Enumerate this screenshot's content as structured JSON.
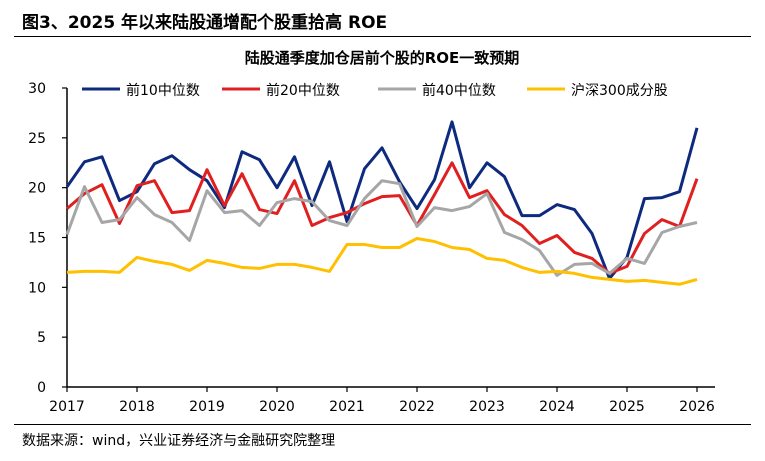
{
  "figure_title": "图3、2025 年以来陆股通增配个股重拾高 ROE",
  "source": "数据来源：wind，兴业证券经济与金融研究院整理",
  "chart_data": {
    "type": "line",
    "title": "陆股通季度加仓居前个股的ROE一致预期",
    "xlabel": "",
    "ylabel": "",
    "x_ticks": [
      "2017",
      "2018",
      "2019",
      "2020",
      "2021",
      "2022",
      "2023",
      "2024",
      "2025",
      "2026"
    ],
    "x_range": [
      2017,
      2026
    ],
    "x_step": 0.25,
    "ylim": [
      0,
      30
    ],
    "y_ticks": [
      0,
      5,
      10,
      15,
      20,
      25,
      30
    ],
    "grid": false,
    "legend_position": "top",
    "series": [
      {
        "name": "前10中位数",
        "color": "#0D2A7E",
        "values": [
          20.1,
          22.6,
          23.1,
          18.7,
          19.6,
          22.4,
          23.2,
          21.8,
          20.7,
          18.0,
          23.6,
          22.8,
          20.0,
          23.1,
          18.2,
          22.6,
          16.6,
          21.9,
          24.0,
          20.6,
          17.9,
          20.8,
          26.6,
          20.0,
          22.5,
          21.1,
          17.2,
          17.2,
          18.3,
          17.8,
          15.4,
          10.9,
          13.0,
          18.9,
          19.0,
          19.6,
          26.0
        ]
      },
      {
        "name": "前20中位数",
        "color": "#E02020",
        "values": [
          17.9,
          19.4,
          20.3,
          16.4,
          20.2,
          20.7,
          17.5,
          17.7,
          21.8,
          18.2,
          21.4,
          17.8,
          17.4,
          20.7,
          16.2,
          17.0,
          17.5,
          18.4,
          19.1,
          19.2,
          16.2,
          19.3,
          22.5,
          19.0,
          19.7,
          17.3,
          16.2,
          14.4,
          15.2,
          13.5,
          12.9,
          11.4,
          12.1,
          15.4,
          16.8,
          16.1,
          20.9
        ]
      },
      {
        "name": "前40中位数",
        "color": "#A6A6A6",
        "values": [
          15.3,
          20.1,
          16.5,
          16.8,
          19.0,
          17.3,
          16.5,
          14.7,
          19.7,
          17.5,
          17.7,
          16.2,
          18.5,
          18.9,
          18.6,
          16.7,
          16.2,
          18.9,
          20.7,
          20.4,
          16.1,
          18.0,
          17.7,
          18.1,
          19.4,
          15.5,
          14.8,
          13.7,
          11.2,
          12.3,
          12.4,
          11.4,
          12.9,
          12.4,
          15.5,
          16.1,
          16.5
        ]
      },
      {
        "name": "沪深300成分股",
        "color": "#FFC000",
        "values": [
          11.5,
          11.6,
          11.6,
          11.5,
          13.0,
          12.6,
          12.3,
          11.7,
          12.7,
          12.4,
          12.0,
          11.9,
          12.3,
          12.3,
          12.0,
          11.6,
          14.3,
          14.3,
          14.0,
          14.0,
          14.9,
          14.6,
          14.0,
          13.8,
          12.9,
          12.7,
          12.0,
          11.5,
          11.6,
          11.4,
          11.0,
          10.8,
          10.6,
          10.7,
          10.5,
          10.3,
          10.8
        ]
      }
    ]
  }
}
